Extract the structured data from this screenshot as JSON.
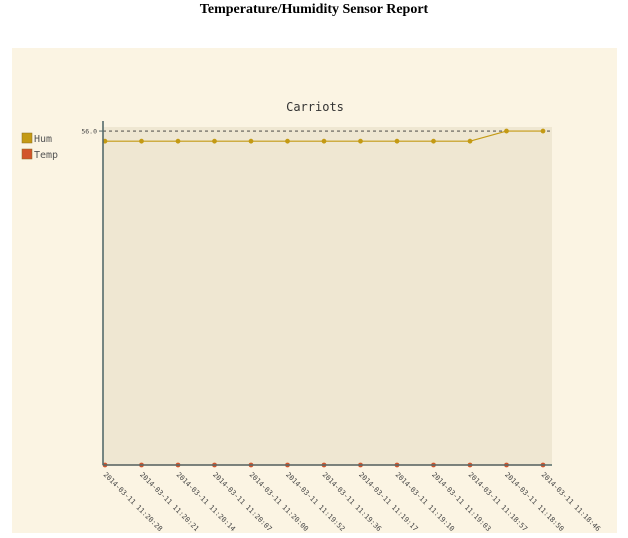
{
  "page": {
    "title": "Temperature/Humidity Sensor Report"
  },
  "colors": {
    "panel_bg": "#fbf4e3",
    "plot_bg": "#efe7d2",
    "axis": "#556b6b",
    "hum": "#c49a14",
    "temp": "#d2552c"
  },
  "chart_data": {
    "type": "line",
    "title": "Carriots",
    "xlabel": "",
    "ylabel": "",
    "legend_position": "left",
    "categories": [
      "2014-03-11 11:20:28",
      "2014-03-11 11:20:21",
      "2014-03-11 11:20:14",
      "2014-03-11 11:20:07",
      "2014-03-11 11:20:00",
      "2014-03-11 11:19:52",
      "2014-03-11 11:19:36",
      "2014-03-11 11:19:17",
      "2014-03-11 11:19:10",
      "2014-03-11 11:19:03",
      "2014-03-11 11:18:57",
      "2014-03-11 11:18:50",
      "2014-03-11 11:18:46"
    ],
    "ylim": [
      23,
      56.4
    ],
    "y_ticks": [
      {
        "value": 56.0,
        "label": "56.0"
      }
    ],
    "series": [
      {
        "name": "Hum",
        "color": "#c49a14",
        "values": [
          55,
          55,
          55,
          55,
          55,
          55,
          55,
          55,
          55,
          55,
          55,
          56,
          56
        ]
      },
      {
        "name": "Temp",
        "color": "#d2552c",
        "values": [
          23,
          23,
          23,
          23,
          23,
          23,
          23,
          23,
          23,
          23,
          23,
          23,
          23
        ]
      }
    ]
  }
}
